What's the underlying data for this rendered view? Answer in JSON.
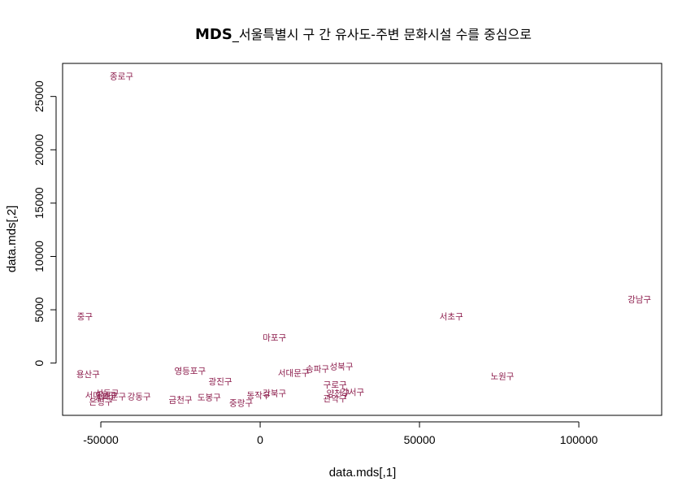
{
  "chart_data": {
    "type": "scatter",
    "title_bold": "MDS",
    "title_rest": "_서울특별시 구 간 유사도-주변 문화시설 수를 중심으로",
    "xlabel": "data.mds[,1]",
    "ylabel": "data.mds[,2]",
    "xlim": [
      -62000,
      126000
    ],
    "ylim": [
      -4900,
      28100
    ],
    "xticks": [
      -50000,
      0,
      50000,
      100000
    ],
    "xtick_labels": [
      "-50000",
      "0",
      "50000",
      "100000"
    ],
    "yticks": [
      0,
      5000,
      10000,
      15000,
      20000,
      25000
    ],
    "ytick_labels": [
      "0",
      "5000",
      "10000",
      "15000",
      "20000",
      "25000"
    ],
    "label_color": "#8b1a4a",
    "points": [
      {
        "label": "종로구",
        "x": -43500,
        "y": 26900
      },
      {
        "label": "중구",
        "x": -55000,
        "y": 4400
      },
      {
        "label": "용산구",
        "x": -54000,
        "y": -1000
      },
      {
        "label": "성동구",
        "x": -48000,
        "y": -2800
      },
      {
        "label": "동대문구",
        "x": -47000,
        "y": -3100
      },
      {
        "label": "서대문구",
        "x": -50000,
        "y": -3000
      },
      {
        "label": "은평구",
        "x": -50000,
        "y": -3600
      },
      {
        "label": "강동구",
        "x": -38000,
        "y": -3100
      },
      {
        "label": "영등포구",
        "x": -22000,
        "y": -700
      },
      {
        "label": "광진구",
        "x": -12500,
        "y": -1700
      },
      {
        "label": "금천구",
        "x": -25000,
        "y": -3400
      },
      {
        "label": "도봉구",
        "x": -16000,
        "y": -3200
      },
      {
        "label": "중랑구",
        "x": -6000,
        "y": -3700
      },
      {
        "label": "동작구",
        "x": -500,
        "y": -3000
      },
      {
        "label": "강북구",
        "x": 4500,
        "y": -2800
      },
      {
        "label": "마포구",
        "x": 4500,
        "y": 2400
      },
      {
        "label": "서대문구",
        "x": 10500,
        "y": -900
      },
      {
        "label": "송파구",
        "x": 18000,
        "y": -500
      },
      {
        "label": "성북구",
        "x": 25500,
        "y": -300
      },
      {
        "label": "구로구",
        "x": 23500,
        "y": -2000
      },
      {
        "label": "양천구",
        "x": 24500,
        "y": -2800
      },
      {
        "label": "강서구",
        "x": 29000,
        "y": -2700
      },
      {
        "label": "관악구",
        "x": 23500,
        "y": -3300
      },
      {
        "label": "서초구",
        "x": 60000,
        "y": 4400
      },
      {
        "label": "노원구",
        "x": 76000,
        "y": -1200
      },
      {
        "label": "강남구",
        "x": 119000,
        "y": 6000
      }
    ]
  }
}
